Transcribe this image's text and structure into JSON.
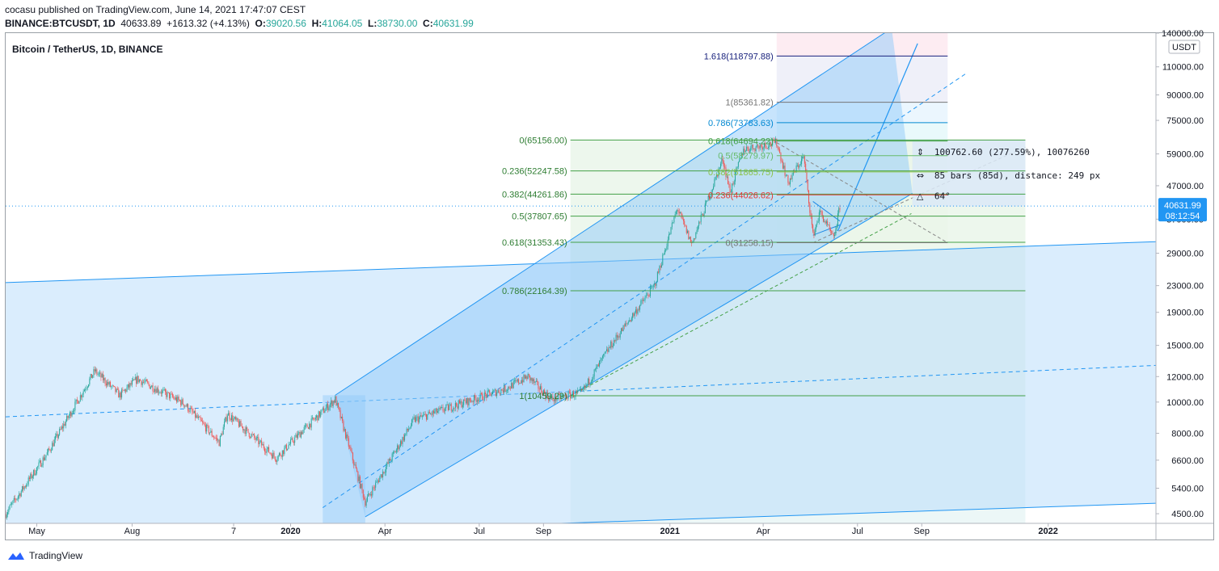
{
  "header": {
    "published_line": "cocasu published on TradingView.com, June 14, 2021 17:47:07 CEST",
    "symbol": "BINANCE:BTCUSDT, 1D",
    "last": "40633.89",
    "change": "+1613.32 (+4.13%)",
    "ohlc": [
      {
        "label": "O:",
        "value": "39020.56"
      },
      {
        "label": "H:",
        "value": "41064.05"
      },
      {
        "label": "L:",
        "value": "38730.00"
      },
      {
        "label": "C:",
        "value": "40631.99"
      }
    ]
  },
  "legend_title": "Bitcoin / TetherUS, 1D, BINANCE",
  "colors": {
    "up": "#26a69a",
    "down": "#ef5350",
    "channel_line": "#2196f3",
    "channel_fill": "#bbdefb",
    "fib_green": "#43a047",
    "price_tag": "#2196f3"
  },
  "chart_data": {
    "type": "candlestick",
    "symbol": "BTCUSDT",
    "exchange": "BINANCE",
    "timeframe": "1D",
    "y_scale": "log",
    "y_unit": "USDT",
    "ylim": [
      4200,
      140000
    ],
    "y_ticks": [
      "140000.00",
      "110000.00",
      "90000.00",
      "75000.00",
      "59000.00",
      "47000.00",
      "37000.00",
      "29000.00",
      "23000.00",
      "19000.00",
      "15000.00",
      "12000.00",
      "10000.00",
      "8000.00",
      "6600.00",
      "5400.00",
      "4500.00"
    ],
    "x_ticks": [
      {
        "label": "May",
        "date": "2019-05-01",
        "bold": false
      },
      {
        "label": "Aug",
        "date": "2019-08-01",
        "bold": false
      },
      {
        "label": "7",
        "date": "2019-11-07",
        "bold": false
      },
      {
        "label": "2020",
        "date": "2020-01-01",
        "bold": true
      },
      {
        "label": "Apr",
        "date": "2020-04-01",
        "bold": false
      },
      {
        "label": "Jul",
        "date": "2020-07-01",
        "bold": false
      },
      {
        "label": "Sep",
        "date": "2020-09-01",
        "bold": false
      },
      {
        "label": "2021",
        "date": "2021-01-01",
        "bold": true
      },
      {
        "label": "Apr",
        "date": "2021-04-01",
        "bold": false
      },
      {
        "label": "Jul",
        "date": "2021-07-01",
        "bold": false
      },
      {
        "label": "Sep",
        "date": "2021-09-01",
        "bold": false
      },
      {
        "label": "2022",
        "date": "2022-01-01",
        "bold": true
      }
    ],
    "price_path": [
      [
        "2019-04-01",
        4500
      ],
      [
        "2019-05-12",
        7000
      ],
      [
        "2019-06-26",
        12500
      ],
      [
        "2019-07-20",
        10500
      ],
      [
        "2019-08-06",
        11800
      ],
      [
        "2019-09-20",
        9900
      ],
      [
        "2019-10-24",
        7500
      ],
      [
        "2019-11-01",
        9200
      ],
      [
        "2019-12-18",
        6700
      ],
      [
        "2020-01-10",
        8000
      ],
      [
        "2020-02-13",
        10200
      ],
      [
        "2020-03-13",
        4900
      ],
      [
        "2020-04-29",
        8800
      ],
      [
        "2020-06-01",
        9600
      ],
      [
        "2020-07-26",
        11000
      ],
      [
        "2020-08-17",
        12000
      ],
      [
        "2020-09-08",
        10200
      ],
      [
        "2020-10-08",
        10700
      ],
      [
        "2020-11-05",
        15000
      ],
      [
        "2020-12-17",
        23000
      ],
      [
        "2021-01-08",
        40000
      ],
      [
        "2021-01-22",
        31000
      ],
      [
        "2021-02-21",
        57000
      ],
      [
        "2021-02-28",
        45000
      ],
      [
        "2021-03-13",
        61000
      ],
      [
        "2021-04-14",
        64000
      ],
      [
        "2021-04-25",
        48000
      ],
      [
        "2021-05-10",
        58000
      ],
      [
        "2021-05-19",
        33000
      ],
      [
        "2021-05-26",
        39000
      ],
      [
        "2021-06-08",
        32000
      ],
      [
        "2021-06-14",
        40631.99
      ]
    ],
    "last_price": {
      "value": "40631.99",
      "countdown": "08:12:54"
    },
    "fib_retracement_left": [
      {
        "label": "0(65156.00)",
        "value": 65156.0
      },
      {
        "label": "0.236(52247.58)",
        "value": 52247.58
      },
      {
        "label": "0.382(44261.86)",
        "value": 44261.86
      },
      {
        "label": "0.5(37807.65)",
        "value": 37807.65
      },
      {
        "label": "0.618(31353.43)",
        "value": 31353.43
      },
      {
        "label": "0.786(22164.39)",
        "value": 22164.39
      },
      {
        "label": "1(10459.29)",
        "value": 10459.29
      }
    ],
    "fib_extension": [
      {
        "label": "1.618(118797.88)",
        "value": 118797.88
      },
      {
        "label": "1(85361.82)",
        "value": 85361.82
      },
      {
        "label": "0.786(73783.63)",
        "value": 73783.63
      },
      {
        "label": "0.618(64694.22)",
        "value": 64694.22
      },
      {
        "label": "0.5(58279.97)",
        "value": 58279.97
      },
      {
        "label": "0.382(51865.75)",
        "value": 51865.75
      },
      {
        "label": "0.236(44026.62)",
        "value": 44026.62
      },
      {
        "label": "0(31258.15)",
        "value": 31258.15
      }
    ],
    "measure_box": {
      "price_range": "100762.60 (277.59%), 10076260",
      "bars_range": "85 bars (85d), distance: 249 px",
      "angle": "64°"
    }
  },
  "footer": {
    "brand": "TradingView"
  }
}
